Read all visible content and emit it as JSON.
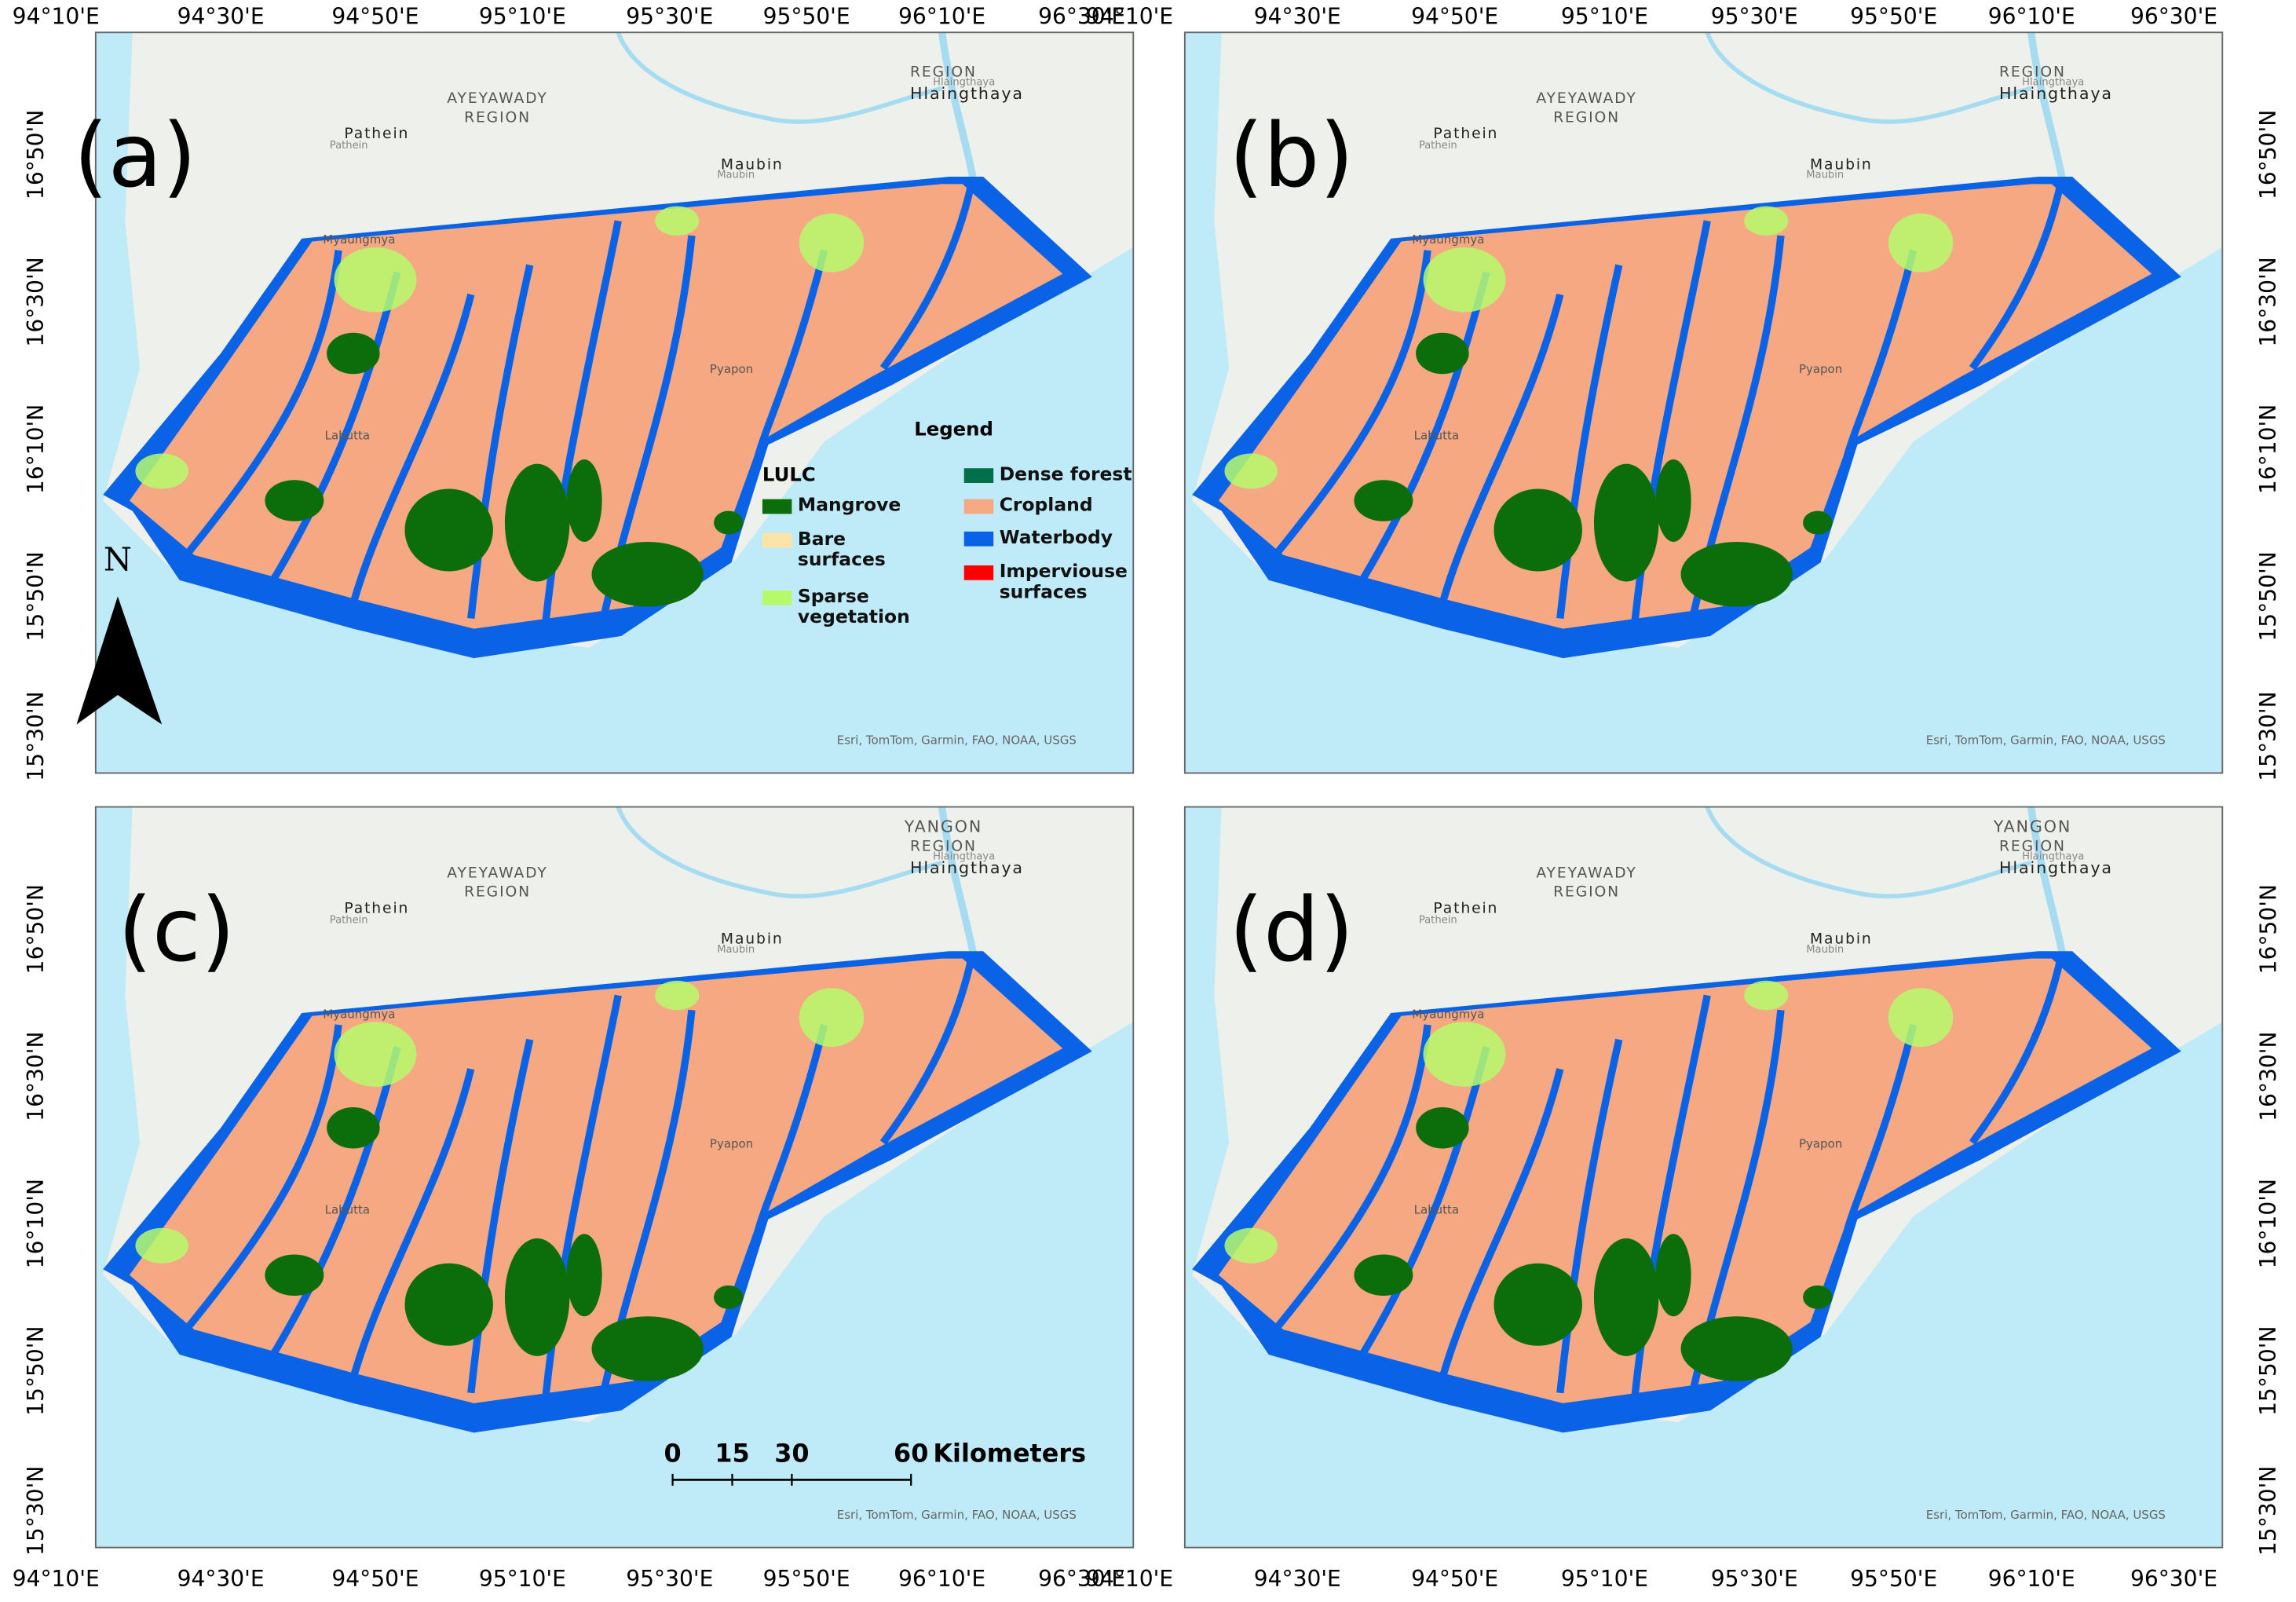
{
  "panels": [
    {
      "label": "(a)"
    },
    {
      "label": "(b)"
    },
    {
      "label": "(c)",
      "region_title": "YANGON"
    },
    {
      "label": "(d)",
      "region_title": "YANGON"
    }
  ],
  "lon_labels": [
    "94°10'E",
    "94°30'E",
    "94°50'E",
    "95°10'E",
    "95°30'E",
    "95°50'E",
    "96°10'E",
    "96°30'E"
  ],
  "lat_labels": [
    "16°50'N",
    "16°30'N",
    "16°10'N",
    "15°50'N",
    "15°30'N"
  ],
  "places": [
    "AYEYAWADY",
    "REGION",
    "Pathein",
    "Pathein",
    "Maubin",
    "Maubin",
    "REGION",
    "Hlaingthaya",
    "Hlaingthaya",
    "Myaungmya",
    "Labutta",
    "Pyapon"
  ],
  "attribution": "Esri, TomTom, Garmin, FAO, NOAA, USGS",
  "north": "N",
  "legend": {
    "title": "Legend",
    "group": "LULC",
    "items": [
      {
        "name": "Mangrove",
        "color": "#0b6e0b"
      },
      {
        "name": "Bare surfaces",
        "color": "#fde3a7"
      },
      {
        "name": "Sparse vegetation",
        "color": "#b6fa6c"
      },
      {
        "name": "Dense forest",
        "color": "#007048"
      },
      {
        "name": "Cropland",
        "color": "#f6a882"
      },
      {
        "name": "Waterbody",
        "color": "#0a63e6"
      },
      {
        "name": "Imperviouse surfaces",
        "color": "#ff0000"
      }
    ]
  },
  "scale_bar": {
    "ticks": [
      0,
      15,
      30,
      60
    ],
    "unit": "Kilometers"
  }
}
